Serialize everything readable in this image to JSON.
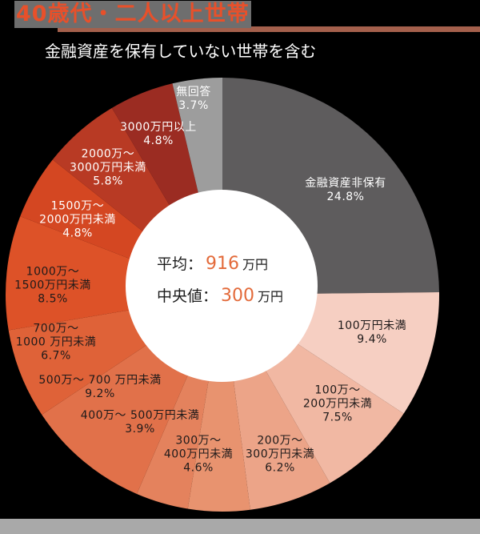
{
  "header": {
    "title": "40歳代・二人以上世帯",
    "subtitle": "金融資産を保有していない世帯を含む"
  },
  "center": {
    "mean_label": "平均：",
    "mean_value": "916",
    "mean_unit": "万円",
    "median_label": "中央値：",
    "median_value": "300",
    "median_unit": "万円"
  },
  "labels": {
    "s0": {
      "line1": "金融資産非保有",
      "line2": "24.8%"
    },
    "s1": {
      "line1": "100万円未満",
      "line2": "9.4%"
    },
    "s2": {
      "line1": "100万～",
      "line2": "200万円未満",
      "line3": "7.5%"
    },
    "s3": {
      "line1": "200万～",
      "line2": "300万円未満",
      "line3": "6.2%"
    },
    "s4": {
      "line1": "300万～",
      "line2": "400万円未満",
      "line3": "4.6%"
    },
    "s5": {
      "line1": "400万～ 500万円未満",
      "line2": "3.9%"
    },
    "s6": {
      "line1": "500万～ 700 万円未満",
      "line2": "9.2%"
    },
    "s7": {
      "line1": "700万～",
      "line2": "1000 万円未満",
      "line3": "6.7%"
    },
    "s8": {
      "line1": "1000万～",
      "line2": "1500万円未満",
      "line3": "8.5%"
    },
    "s9": {
      "line1": "1500万～",
      "line2": "2000万円未満",
      "line3": "4.8%"
    },
    "s10": {
      "line1": "2000万～",
      "line2": "3000万円未満",
      "line3": "5.8%"
    },
    "s11": {
      "line1": "3000万円以上",
      "line2": "4.8%"
    },
    "s12": {
      "line1": "無回答",
      "line2": "3.7%"
    }
  },
  "chart_data": {
    "type": "pie",
    "title": "40歳代・二人以上世帯",
    "subtitle": "金融資産を保有していない世帯を含む",
    "donut": true,
    "start_angle": "12 o'clock, clockwise",
    "categories": [
      "金融資産非保有",
      "100万円未満",
      "100万～200万円未満",
      "200万～300万円未満",
      "300万～400万円未満",
      "400万～500万円未満",
      "500万～700万円未満",
      "700万～1000万円未満",
      "1000万～1500万円未満",
      "1500万～2000万円未満",
      "2000万～3000万円未満",
      "3000万円以上",
      "無回答"
    ],
    "values": [
      24.8,
      9.4,
      7.5,
      6.2,
      4.6,
      3.9,
      9.2,
      6.7,
      8.5,
      4.8,
      5.8,
      4.8,
      3.7
    ],
    "unit": "%",
    "colors": [
      "#5e5c5d",
      "#f6cfc2",
      "#f1b8a3",
      "#eca488",
      "#e8936f",
      "#e4825d",
      "#e1714a",
      "#df6238",
      "#dd5228",
      "#d44722",
      "#b83a24",
      "#9b2c22",
      "#9d9d9d"
    ],
    "center_annotations": {
      "平均": "916 万円",
      "中央値": "300 万円"
    }
  }
}
